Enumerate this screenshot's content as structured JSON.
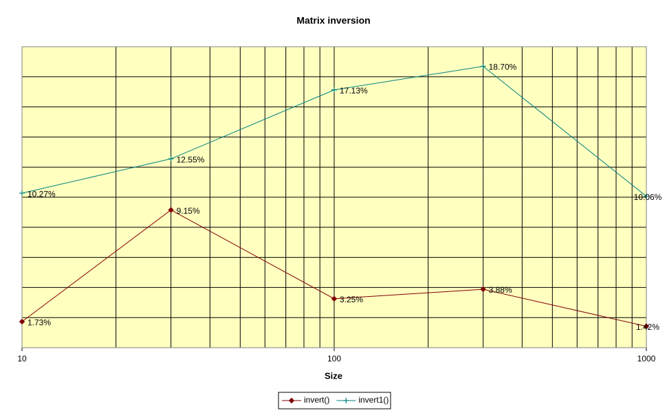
{
  "chart_data": {
    "type": "line",
    "title": "Matrix inversion",
    "x_label": "Size",
    "x": [
      10,
      30,
      100,
      300,
      1000
    ],
    "x_scale": "log",
    "xlim": [
      10,
      1000
    ],
    "xticks": [
      10,
      100,
      1000
    ],
    "minor_xticks": [
      20,
      30,
      40,
      50,
      60,
      70,
      80,
      90,
      200,
      300,
      400,
      500,
      600,
      700,
      800,
      900
    ],
    "ylim": [
      0,
      20
    ],
    "yticks": [
      0,
      2,
      4,
      6,
      8,
      10,
      12,
      14,
      16,
      18,
      20
    ],
    "y_tick_labels": false,
    "grid": true,
    "legend": "bottom",
    "background": "#ffffc0",
    "series": [
      {
        "name": "invert()",
        "color": "#800000",
        "marker": "diamond",
        "values": [
          1.73,
          9.15,
          3.25,
          3.88,
          1.42
        ],
        "value_labels": [
          "1.73%",
          "9.15%",
          "3.25%",
          "3.88%",
          "1.42%"
        ]
      },
      {
        "name": "invert1()",
        "color": "#008080",
        "marker": "plus",
        "values": [
          10.27,
          12.55,
          17.13,
          18.7,
          10.06
        ],
        "value_labels": [
          "10.27%",
          "12.55%",
          "17.13%",
          "18.70%",
          "10.06%"
        ]
      }
    ]
  }
}
